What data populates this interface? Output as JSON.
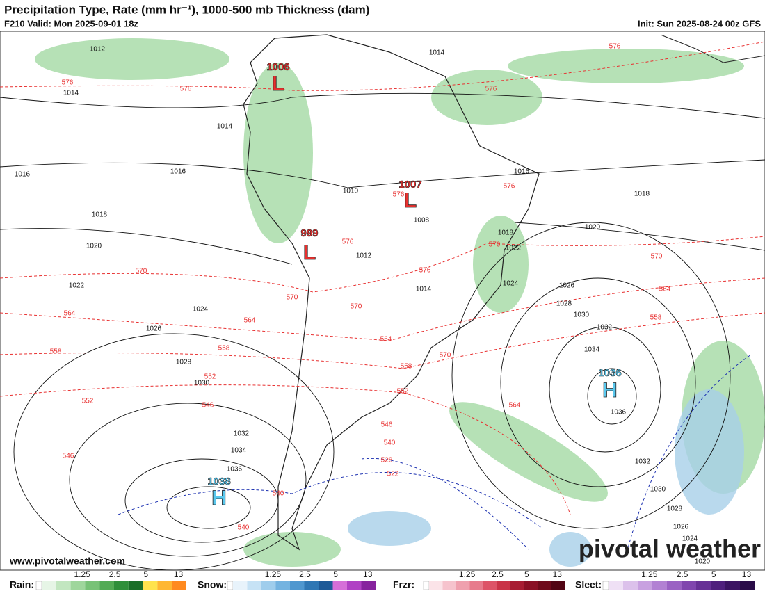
{
  "header": {
    "title": "Precipitation Type, Rate (mm hr⁻¹), 1000-500 mb Thickness (dam)",
    "valid": "F210 Valid: Mon 2025-09-01 18z",
    "init": "Init: Sun 2025-08-24 00z GFS"
  },
  "watermark": "www.pivotalweather.com",
  "brand": "pivotal weather",
  "centers": [
    {
      "letter": "L",
      "value": "1006"
    },
    {
      "letter": "L",
      "value": "1007"
    },
    {
      "letter": "L",
      "value": "999"
    },
    {
      "letter": "H",
      "value": "1036"
    },
    {
      "letter": "H",
      "value": "1038"
    }
  ],
  "isobar_labels": [
    "1012",
    "1014",
    "1014",
    "1014",
    "1016",
    "1016",
    "1018",
    "1020",
    "1022",
    "1024",
    "1026",
    "1028",
    "1030",
    "1032",
    "1034",
    "1036",
    "1018",
    "1020",
    "1022",
    "1024",
    "1026",
    "1028",
    "1030",
    "1032",
    "1034",
    "1036",
    "1032",
    "1030",
    "1028",
    "1026",
    "1024",
    "1020",
    "1008",
    "1010",
    "1012",
    "1014",
    "1016",
    "1018"
  ],
  "thickness_labels": [
    "576",
    "576",
    "576",
    "576",
    "576",
    "576",
    "576",
    "576",
    "570",
    "570",
    "570",
    "570",
    "570",
    "570",
    "564",
    "564",
    "564",
    "564",
    "564",
    "558",
    "558",
    "558",
    "558",
    "552",
    "552",
    "552",
    "546",
    "546",
    "546",
    "540",
    "540",
    "540",
    "528",
    "522"
  ],
  "legend": [
    {
      "name": "Rain:",
      "ticks": [
        "1.25",
        "2.5",
        "5",
        "13"
      ]
    },
    {
      "name": "Snow:",
      "ticks": [
        "1.25",
        "2.5",
        "5",
        "13"
      ]
    },
    {
      "name": "Frzr:",
      "ticks": [
        "1.25",
        "2.5",
        "5",
        "13"
      ]
    },
    {
      "name": "Sleet:",
      "ticks": [
        "1.25",
        "2.5",
        "5",
        "13"
      ]
    }
  ]
}
